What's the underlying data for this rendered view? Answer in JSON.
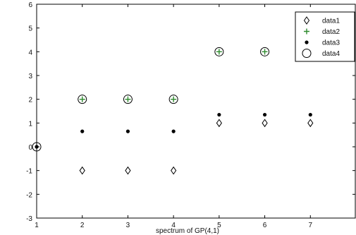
{
  "chart_data": {
    "type": "scatter",
    "title": "",
    "xlabel": "spectrum of GP(4,1)",
    "ylabel": "",
    "xlim": [
      1,
      8
    ],
    "ylim": [
      -3,
      6
    ],
    "x_ticks": [
      1,
      2,
      3,
      4,
      5,
      6,
      7
    ],
    "y_ticks": [
      -3,
      -2,
      -1,
      0,
      1,
      2,
      3,
      4,
      5,
      6
    ],
    "grid": false,
    "legend_position": "top-right",
    "series": [
      {
        "name": "data1",
        "marker": "diamond",
        "color": "#000000",
        "x": [
          2,
          3,
          4,
          5,
          6,
          7
        ],
        "y": [
          -1,
          -1,
          -1,
          1,
          1,
          1
        ]
      },
      {
        "name": "data2",
        "marker": "plus",
        "color": "#2e8b2e",
        "x": [
          2,
          3,
          4,
          5,
          6
        ],
        "y": [
          2,
          2,
          2,
          4,
          4
        ]
      },
      {
        "name": "data3",
        "marker": "dot",
        "color": "#000000",
        "x": [
          1,
          2,
          3,
          4,
          5,
          6,
          7
        ],
        "y": [
          0,
          0.65,
          0.65,
          0.65,
          1.35,
          1.35,
          1.35
        ]
      },
      {
        "name": "data4",
        "marker": "circle",
        "color": "#000000",
        "x": [
          1,
          2,
          3,
          4,
          5,
          6
        ],
        "y": [
          0,
          2,
          2,
          2,
          4,
          4
        ]
      }
    ]
  }
}
